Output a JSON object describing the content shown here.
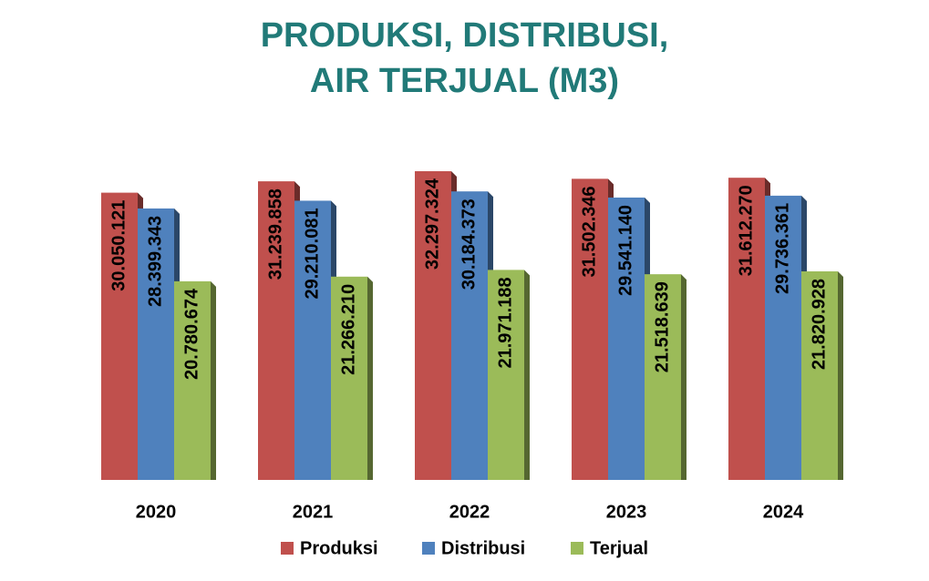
{
  "chart_data": {
    "type": "bar",
    "title": "PRODUKSI, DISTRIBUSI,\nAIR TERJUAL (M3)",
    "categories": [
      "2020",
      "2021",
      "2022",
      "2023",
      "2024"
    ],
    "series": [
      {
        "name": "Produksi",
        "color": "#c0504d",
        "values": [
          30050121,
          31239858,
          32297324,
          31502346,
          31612270
        ],
        "value_labels": [
          "30.050.121",
          "31.239.858",
          "32.297.324",
          "31.502.346",
          "31.612.270"
        ]
      },
      {
        "name": "Distribusi",
        "color": "#4f81bd",
        "values": [
          28399343,
          29210081,
          30184373,
          29541140,
          29736361
        ],
        "value_labels": [
          "28.399.343",
          "29.210.081",
          "30.184.373",
          "29.541.140",
          "29.736.361"
        ]
      },
      {
        "name": "Terjual",
        "color": "#9bbb59",
        "values": [
          20780674,
          21266210,
          21971188,
          21518639,
          21820928
        ],
        "value_labels": [
          "20.780.674",
          "21.266.210",
          "21.971.188",
          "21.518.639",
          "21.820.928"
        ]
      }
    ],
    "legend": "bottom"
  }
}
